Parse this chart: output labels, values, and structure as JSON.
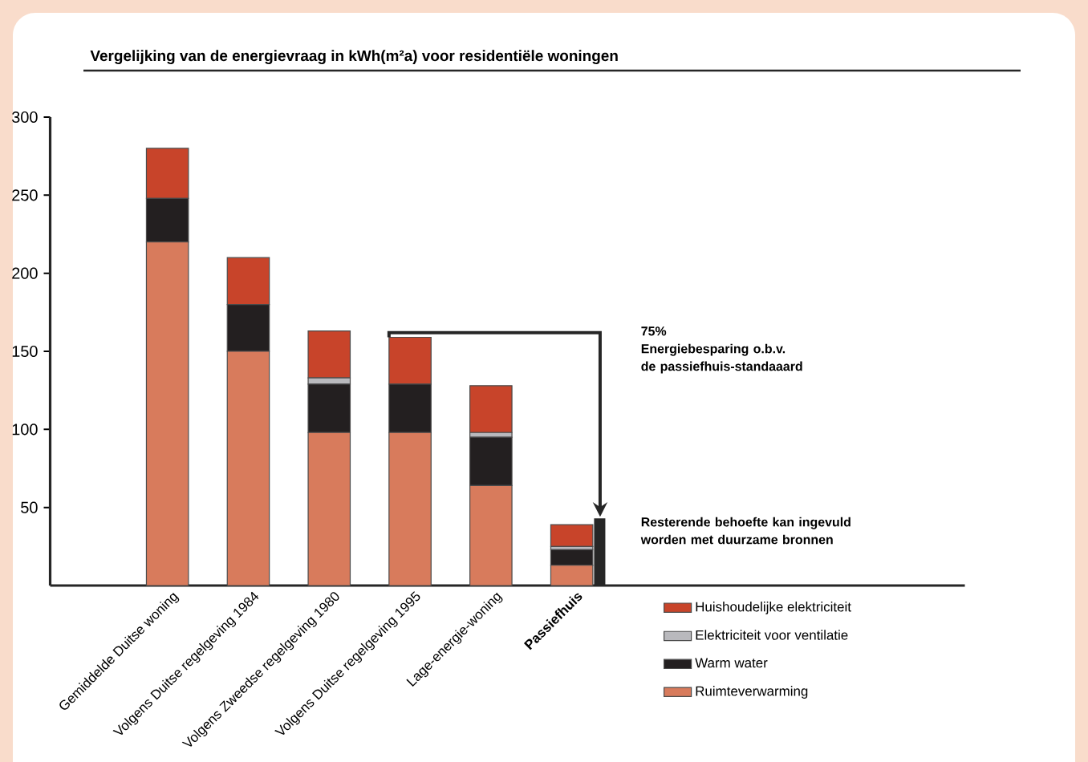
{
  "chart_data": {
    "type": "bar",
    "stacked": true,
    "title": "Vergelijking van de energievraag in kWh(m²a) voor residentiële woningen",
    "categories": [
      "Gemiddelde Duitse woning",
      "Volgens Duitse regelgeving 1984",
      "Volgens Zweedse regelgeving 1980",
      "Volgens Duitse regelgeving 1995",
      "Lage-energie-woning",
      "**Passiefhuis**"
    ],
    "series": [
      {
        "name": "Ruimteverwarming",
        "color": "#d87b5c",
        "values": [
          220,
          150,
          98,
          98,
          64,
          13
        ]
      },
      {
        "name": "Warm water",
        "color": "#231f20",
        "values": [
          28,
          30,
          31,
          31,
          31,
          10
        ]
      },
      {
        "name": "Elektriciteit voor ventilatie",
        "color": "#b9b9bd",
        "values": [
          null,
          null,
          4,
          null,
          3,
          2
        ]
      },
      {
        "name": "Huishoudelijke elektriciteit",
        "color": "#c8442a",
        "values": [
          32,
          30,
          30,
          30,
          30,
          14
        ]
      }
    ],
    "ylim": [
      0,
      300
    ],
    "yticks": [
      50,
      100,
      150,
      200,
      250,
      300
    ],
    "legend": "bottom right",
    "annotations": [
      "75%\nEnergiebesparing o.b.v.\nde passiefhuis-standaaard",
      "Resterende behoefte kan ingevuld\nworden met duurzame bronnen"
    ]
  }
}
